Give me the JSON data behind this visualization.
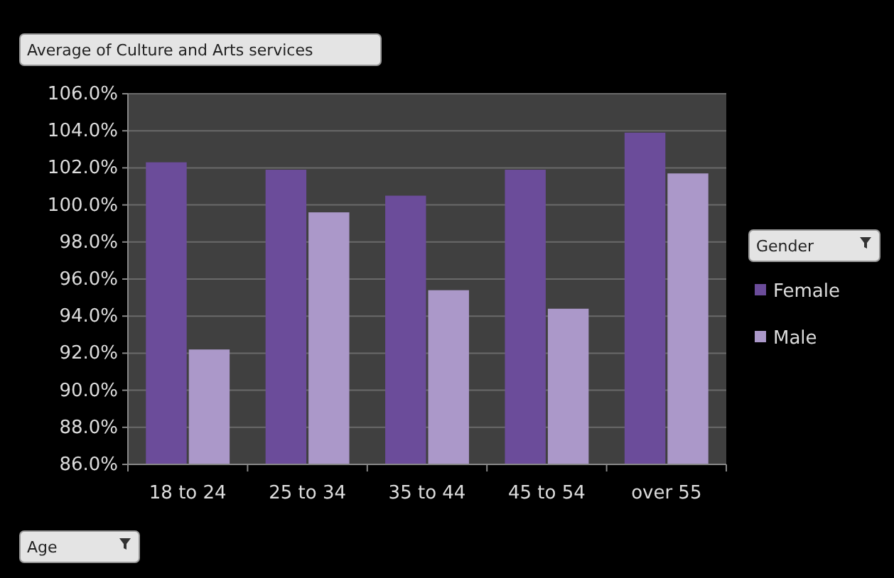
{
  "chart_data": {
    "type": "bar",
    "title": "Average of Culture and Arts services",
    "xlabel": "Age",
    "legend_title": "Gender",
    "categories": [
      "18 to 24",
      "25 to 34",
      "35 to 44",
      "45 to 54",
      "over 55"
    ],
    "series": [
      {
        "name": "Female",
        "color": "#6b4c9a",
        "values": [
          102.3,
          101.9,
          100.5,
          101.9,
          103.9
        ]
      },
      {
        "name": "Male",
        "color": "#ab98c9",
        "values": [
          92.2,
          99.6,
          95.4,
          94.4,
          101.7
        ]
      }
    ],
    "ylim": [
      86,
      106
    ],
    "yticks": [
      {
        "value": 86,
        "label": "86.0%"
      },
      {
        "value": 88,
        "label": "88.0%"
      },
      {
        "value": 90,
        "label": "90.0%"
      },
      {
        "value": 92,
        "label": "92.0%"
      },
      {
        "value": 94,
        "label": "94.0%"
      },
      {
        "value": 96,
        "label": "96.0%"
      },
      {
        "value": 98,
        "label": "98.0%"
      },
      {
        "value": 100,
        "label": "100.0%"
      },
      {
        "value": 102,
        "label": "102.0%"
      },
      {
        "value": 104,
        "label": "104.0%"
      },
      {
        "value": 106,
        "label": "106.0%"
      }
    ],
    "grid": "y",
    "legend": "right"
  }
}
